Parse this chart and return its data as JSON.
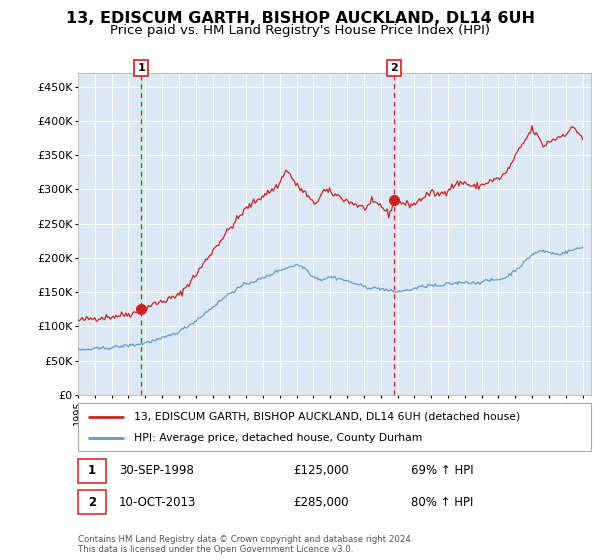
{
  "title": "13, EDISCUM GARTH, BISHOP AUCKLAND, DL14 6UH",
  "subtitle": "Price paid vs. HM Land Registry's House Price Index (HPI)",
  "title_fontsize": 11.5,
  "subtitle_fontsize": 9.5,
  "bg_color": "#dce9f5",
  "grid_color": "#ffffff",
  "red_line_color": "#cc2222",
  "blue_line_color": "#6699cc",
  "purchase1_date": 1998.75,
  "purchase1_price": 125000,
  "purchase2_date": 2013.78,
  "purchase2_price": 285000,
  "legend_entry1": "13, EDISCUM GARTH, BISHOP AUCKLAND, DL14 6UH (detached house)",
  "legend_entry2": "HPI: Average price, detached house, County Durham",
  "footnote": "Contains HM Land Registry data © Crown copyright and database right 2024.\nThis data is licensed under the Open Government Licence v3.0.",
  "ylim": [
    0,
    470000
  ],
  "yticks": [
    0,
    50000,
    100000,
    150000,
    200000,
    250000,
    300000,
    350000,
    400000,
    450000
  ],
  "xlim_start": 1995.0,
  "xlim_end": 2025.5,
  "red_anchors": [
    [
      1995.0,
      108000
    ],
    [
      1996.0,
      112000
    ],
    [
      1997.0,
      114000
    ],
    [
      1997.5,
      116000
    ],
    [
      1998.0,
      118000
    ],
    [
      1998.5,
      120000
    ],
    [
      1998.75,
      125000
    ],
    [
      1999.0,
      128000
    ],
    [
      1999.5,
      132000
    ],
    [
      2000.0,
      136000
    ],
    [
      2001.0,
      145000
    ],
    [
      2002.0,
      175000
    ],
    [
      2003.0,
      210000
    ],
    [
      2004.0,
      242000
    ],
    [
      2005.0,
      272000
    ],
    [
      2006.0,
      291000
    ],
    [
      2006.5,
      298000
    ],
    [
      2007.0,
      308000
    ],
    [
      2007.3,
      328000
    ],
    [
      2007.6,
      322000
    ],
    [
      2008.0,
      305000
    ],
    [
      2008.5,
      295000
    ],
    [
      2009.0,
      278000
    ],
    [
      2009.3,
      285000
    ],
    [
      2009.6,
      298000
    ],
    [
      2010.0,
      295000
    ],
    [
      2010.5,
      290000
    ],
    [
      2011.0,
      283000
    ],
    [
      2011.5,
      278000
    ],
    [
      2012.0,
      272000
    ],
    [
      2012.5,
      280000
    ],
    [
      2013.0,
      277000
    ],
    [
      2013.5,
      262000
    ],
    [
      2013.78,
      285000
    ],
    [
      2014.0,
      282000
    ],
    [
      2014.5,
      278000
    ],
    [
      2015.0,
      278000
    ],
    [
      2015.5,
      288000
    ],
    [
      2016.0,
      295000
    ],
    [
      2016.5,
      292000
    ],
    [
      2017.0,
      300000
    ],
    [
      2017.5,
      308000
    ],
    [
      2018.0,
      310000
    ],
    [
      2018.5,
      303000
    ],
    [
      2019.0,
      306000
    ],
    [
      2019.5,
      312000
    ],
    [
      2020.0,
      315000
    ],
    [
      2020.5,
      325000
    ],
    [
      2021.0,
      348000
    ],
    [
      2021.5,
      368000
    ],
    [
      2022.0,
      388000
    ],
    [
      2022.3,
      378000
    ],
    [
      2022.7,
      362000
    ],
    [
      2023.0,
      370000
    ],
    [
      2023.5,
      375000
    ],
    [
      2024.0,
      382000
    ],
    [
      2024.5,
      390000
    ],
    [
      2025.0,
      375000
    ]
  ],
  "blue_anchors": [
    [
      1995.0,
      65000
    ],
    [
      1996.0,
      67000
    ],
    [
      1997.0,
      69000
    ],
    [
      1998.0,
      72000
    ],
    [
      1998.75,
      74000
    ],
    [
      1999.0,
      76000
    ],
    [
      2000.0,
      82000
    ],
    [
      2001.0,
      92000
    ],
    [
      2002.0,
      108000
    ],
    [
      2003.0,
      128000
    ],
    [
      2004.0,
      148000
    ],
    [
      2005.0,
      162000
    ],
    [
      2006.0,
      170000
    ],
    [
      2007.0,
      182000
    ],
    [
      2007.5,
      186000
    ],
    [
      2008.0,
      190000
    ],
    [
      2008.5,
      185000
    ],
    [
      2009.0,
      172000
    ],
    [
      2009.5,
      168000
    ],
    [
      2010.0,
      172000
    ],
    [
      2010.5,
      170000
    ],
    [
      2011.0,
      166000
    ],
    [
      2011.5,
      162000
    ],
    [
      2012.0,
      158000
    ],
    [
      2012.5,
      156000
    ],
    [
      2013.0,
      155000
    ],
    [
      2013.5,
      152000
    ],
    [
      2013.78,
      150000
    ],
    [
      2014.0,
      151000
    ],
    [
      2014.5,
      152000
    ],
    [
      2015.0,
      155000
    ],
    [
      2015.5,
      158000
    ],
    [
      2016.0,
      160000
    ],
    [
      2016.5,
      158000
    ],
    [
      2017.0,
      162000
    ],
    [
      2017.5,
      163000
    ],
    [
      2018.0,
      165000
    ],
    [
      2018.5,
      163000
    ],
    [
      2019.0,
      165000
    ],
    [
      2019.5,
      167000
    ],
    [
      2020.0,
      168000
    ],
    [
      2020.5,
      172000
    ],
    [
      2021.0,
      182000
    ],
    [
      2021.5,
      192000
    ],
    [
      2022.0,
      205000
    ],
    [
      2022.5,
      210000
    ],
    [
      2023.0,
      208000
    ],
    [
      2023.5,
      205000
    ],
    [
      2024.0,
      208000
    ],
    [
      2024.5,
      212000
    ],
    [
      2025.0,
      215000
    ]
  ]
}
